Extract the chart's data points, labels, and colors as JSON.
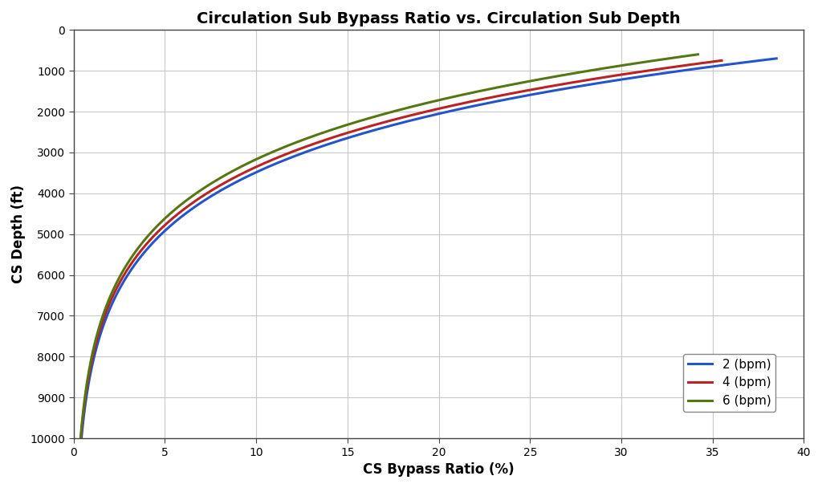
{
  "title": "Circulation Sub Bypass Ratio vs. Circulation Sub Depth",
  "xlabel": "CS Bypass Ratio (%)",
  "ylabel": "CS Depth (ft)",
  "xlim": [
    0,
    40
  ],
  "ylim": [
    10000,
    0
  ],
  "yticks": [
    0,
    1000,
    2000,
    3000,
    4000,
    5000,
    6000,
    7000,
    8000,
    9000,
    10000
  ],
  "xticks": [
    0,
    5,
    10,
    15,
    20,
    25,
    30,
    35,
    40
  ],
  "series": [
    {
      "label": "2 (bpm)",
      "color": "#2255CC",
      "linewidth": 2.2,
      "max_ratio": 38.5,
      "min_depth": 700,
      "k": 4.5
    },
    {
      "label": "4 (bpm)",
      "color": "#BB2222",
      "linewidth": 2.2,
      "max_ratio": 35.5,
      "min_depth": 750,
      "k": 4.5
    },
    {
      "label": "6 (bpm)",
      "color": "#557711",
      "linewidth": 2.2,
      "max_ratio": 34.2,
      "min_depth": 600,
      "k": 4.5
    }
  ],
  "background_color": "#FFFFFF",
  "grid_color": "#C8C8C8",
  "title_fontsize": 14,
  "label_fontsize": 12,
  "tick_fontsize": 10,
  "legend_fontsize": 11
}
